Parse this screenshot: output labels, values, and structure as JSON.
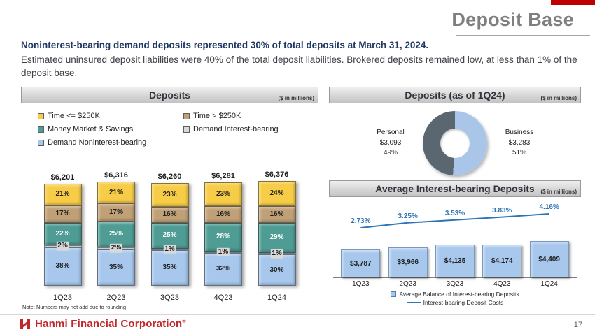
{
  "page": {
    "title": "Deposit Base",
    "headline": "Noninterest-bearing demand deposits represented 30% of total deposits at March 31, 2024.",
    "body_text": "Estimated uninsured deposit liabilities were 40% of the total deposit liabilities. Brokered deposits remained low, at less than 1% of the deposit base.",
    "page_number": "17",
    "brand": "Hanmi Financial Corporation",
    "brand_mark": "®"
  },
  "colors": {
    "accent_red": "#c00000",
    "title_gray": "#7f7f7f",
    "headline_navy": "#1f3864",
    "brand_red": "#c0272d"
  },
  "chart_data": [
    {
      "type": "bar",
      "subtype": "stacked-100-percent",
      "title": "Deposits",
      "units": "($ in millions)",
      "categories": [
        "1Q23",
        "2Q23",
        "3Q23",
        "4Q23",
        "1Q24"
      ],
      "totals": [
        "$6,201",
        "$6,316",
        "$6,260",
        "$6,281",
        "$6,376"
      ],
      "totals_numeric": [
        6201,
        6316,
        6260,
        6281,
        6376
      ],
      "series": [
        {
          "name": "Demand Noninterest-bearing",
          "color": "#a7c7ec",
          "label_color": "#1f1f1f",
          "values": [
            38,
            35,
            35,
            32,
            30
          ]
        },
        {
          "name": "Demand Interest-bearing",
          "color": "#d9d9d9",
          "label_color": "#1f1f1f",
          "values": [
            2,
            2,
            1,
            1,
            1
          ]
        },
        {
          "name": "Money Market & Savings",
          "color": "#4e9c94",
          "label_color": "#ffffff",
          "values": [
            22,
            25,
            25,
            28,
            29
          ]
        },
        {
          "name": "Time > $250K",
          "color": "#c0a077",
          "label_color": "#1f1f1f",
          "values": [
            17,
            17,
            16,
            16,
            16
          ]
        },
        {
          "name": "Time <= $250K",
          "color": "#f7cc47",
          "label_color": "#1f1f1f",
          "values": [
            21,
            21,
            23,
            23,
            24
          ]
        }
      ],
      "note": "Note: Numbers may not add due to rounding"
    },
    {
      "type": "pie",
      "subtype": "donut",
      "title": "Deposits (as of 1Q24)",
      "units": "($ in millions)",
      "slices": [
        {
          "label": "Personal",
          "value": "$3,093",
          "pct": 49,
          "pct_label": "49%",
          "color": "#5b6770"
        },
        {
          "label": "Business",
          "value": "$3,283",
          "pct": 51,
          "pct_label": "51%",
          "color": "#a9c6e8"
        }
      ]
    },
    {
      "type": "bar-line",
      "title": "Average Interest-bearing Deposits",
      "units": "($ in millions)",
      "categories": [
        "1Q23",
        "2Q23",
        "3Q23",
        "4Q23",
        "1Q24"
      ],
      "bar_values": [
        "$3,787",
        "$3,966",
        "$4,135",
        "$4,174",
        "$4,409"
      ],
      "bar_numeric": [
        3787,
        3966,
        4135,
        4174,
        4409
      ],
      "line_values": [
        "2.73%",
        "3.25%",
        "3.53%",
        "3.83%",
        "4.16%"
      ],
      "line_numeric": [
        2.73,
        3.25,
        3.53,
        3.83,
        4.16
      ],
      "bar_color": "#a7c7ec",
      "line_color": "#2e75b6",
      "legend": [
        "Average Balance of Interest-bearing Deposits",
        "Interest-bearing Deposit Costs"
      ]
    }
  ]
}
